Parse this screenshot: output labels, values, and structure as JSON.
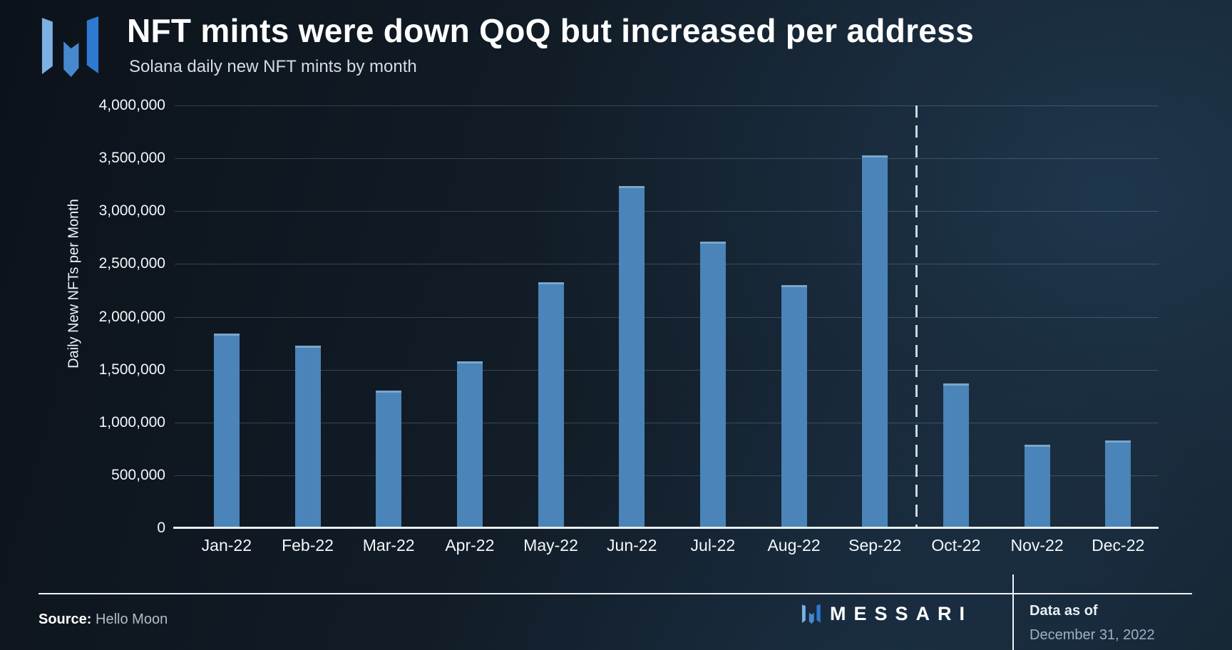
{
  "header": {
    "title": "NFT mints were down QoQ but increased per address",
    "subtitle": "Solana daily new NFT mints by month"
  },
  "colors": {
    "bar": "#4a84b8",
    "bar_top_highlight": "#7aa6cc",
    "background_dark": "#0c121a",
    "background_blue": "#15222e",
    "gridline": "rgba(167,191,211,0.26)",
    "axis_line": "#e9eff5",
    "separator_dash": "#ccd7e1",
    "logo_blue_light": "#7db0e3",
    "logo_blue_mid": "#4789cf",
    "logo_blue_deep": "#2e7ad2"
  },
  "chart_data": {
    "type": "bar",
    "title": "NFT mints were down QoQ but increased per address",
    "subtitle": "Solana daily new NFT mints by month",
    "xlabel": "",
    "ylabel": "Daily New NFTs per Month",
    "categories": [
      "Jan-22",
      "Feb-22",
      "Mar-22",
      "Apr-22",
      "May-22",
      "Jun-22",
      "Jul-22",
      "Aug-22",
      "Sep-22",
      "Oct-22",
      "Nov-22",
      "Dec-22"
    ],
    "values": [
      1840000,
      1730000,
      1300000,
      1580000,
      2330000,
      3240000,
      2710000,
      2300000,
      3530000,
      1370000,
      790000,
      830000
    ],
    "ylim": [
      0,
      4000000
    ],
    "ytick_step": 500000,
    "ytick_labels": [
      "0",
      "500,000",
      "1,000,000",
      "1,500,000",
      "2,000,000",
      "2,500,000",
      "3,000,000",
      "3,500,000",
      "4,000,000"
    ],
    "grid": true,
    "legend": false,
    "separator_after_index": 8,
    "separator_style": "dashed-vertical-line"
  },
  "footer": {
    "source_label": "Source:",
    "source_value": "Hello Moon",
    "brand": "MESSARI",
    "data_as_of_label": "Data as of",
    "data_as_of_value": "December 31, 2022"
  }
}
